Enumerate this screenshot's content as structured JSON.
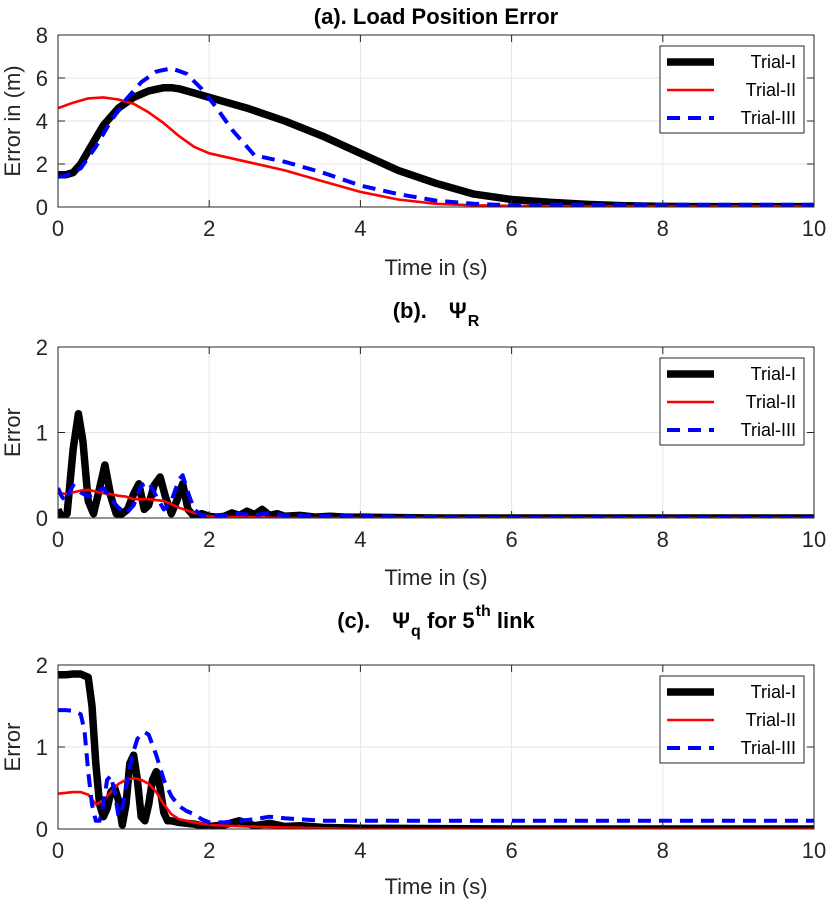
{
  "chart_data": [
    {
      "type": "line",
      "title": "(a). Load Position Error",
      "title_parts": [],
      "xlabel": "Time in (s)",
      "ylabel": "Error in (m)",
      "xlim": [
        0,
        10
      ],
      "ylim": [
        0,
        8
      ],
      "xticks": [
        0,
        2,
        4,
        6,
        8,
        10
      ],
      "yticks": [
        0,
        2,
        4,
        6,
        8
      ],
      "grid": true,
      "legend_position": "top-right",
      "series": [
        {
          "name": "Trial-I",
          "color": "#000000",
          "style": "solid-thick",
          "x": [
            0,
            0.1,
            0.2,
            0.3,
            0.4,
            0.5,
            0.6,
            0.7,
            0.8,
            1.0,
            1.2,
            1.4,
            1.5,
            1.6,
            1.8,
            2.0,
            2.5,
            3.0,
            3.5,
            4.0,
            4.5,
            5.0,
            5.5,
            6.0,
            6.5,
            7.0,
            7.5,
            8.0,
            8.5,
            9.0,
            9.5,
            10.0
          ],
          "y": [
            1.5,
            1.5,
            1.6,
            2.0,
            2.6,
            3.2,
            3.8,
            4.2,
            4.6,
            5.1,
            5.4,
            5.55,
            5.55,
            5.5,
            5.3,
            5.1,
            4.6,
            4.0,
            3.3,
            2.5,
            1.7,
            1.1,
            0.6,
            0.35,
            0.22,
            0.12,
            0.06,
            0.03,
            0.02,
            0.02,
            0.02,
            0.02
          ]
        },
        {
          "name": "Trial-II",
          "color": "#ff0000",
          "style": "solid",
          "x": [
            0,
            0.2,
            0.4,
            0.6,
            0.8,
            1.0,
            1.2,
            1.4,
            1.6,
            1.8,
            2.0,
            2.5,
            3.0,
            3.5,
            4.0,
            4.5,
            5.0,
            5.5,
            6.0,
            7.0,
            8.0,
            9.0,
            10.0
          ],
          "y": [
            4.6,
            4.85,
            5.05,
            5.1,
            5.0,
            4.8,
            4.4,
            3.9,
            3.3,
            2.8,
            2.5,
            2.1,
            1.7,
            1.2,
            0.7,
            0.35,
            0.15,
            0.08,
            0.05,
            0.02,
            0.02,
            0.02,
            0.02
          ]
        },
        {
          "name": "Trial-III",
          "color": "#0000ff",
          "style": "dashed",
          "x": [
            0,
            0.1,
            0.3,
            0.5,
            0.7,
            0.9,
            1.1,
            1.3,
            1.5,
            1.7,
            1.9,
            2.1,
            2.3,
            2.6,
            3.0,
            3.5,
            4.0,
            4.5,
            5.0,
            5.5,
            6.0,
            6.5,
            7.0,
            8.0,
            9.0,
            10.0
          ],
          "y": [
            1.4,
            1.45,
            1.8,
            2.8,
            4.0,
            5.0,
            5.8,
            6.3,
            6.45,
            6.2,
            5.5,
            4.6,
            3.6,
            2.4,
            2.1,
            1.6,
            1.0,
            0.6,
            0.3,
            0.15,
            0.08,
            0.1,
            0.1,
            0.1,
            0.1,
            0.1
          ]
        }
      ]
    },
    {
      "type": "line",
      "title": "(b).",
      "title_parts": [
        {
          "text": "(b).",
          "kind": "normal"
        },
        {
          "text": "Ψ",
          "kind": "normal"
        },
        {
          "text": "R",
          "kind": "sub"
        }
      ],
      "xlabel": "Time in (s)",
      "ylabel": "Error",
      "xlim": [
        0,
        10
      ],
      "ylim": [
        0,
        2
      ],
      "xticks": [
        0,
        2,
        4,
        6,
        8,
        10
      ],
      "yticks": [
        0,
        1,
        2
      ],
      "grid": true,
      "legend_position": "top-right",
      "series": [
        {
          "name": "Trial-I",
          "color": "#000000",
          "style": "solid-thick",
          "x": [
            0,
            0.05,
            0.12,
            0.2,
            0.27,
            0.33,
            0.4,
            0.47,
            0.55,
            0.62,
            0.7,
            0.77,
            0.85,
            0.92,
            1.0,
            1.07,
            1.14,
            1.2,
            1.27,
            1.35,
            1.42,
            1.5,
            1.57,
            1.65,
            1.72,
            1.8,
            1.9,
            2.0,
            2.1,
            2.2,
            2.3,
            2.4,
            2.5,
            2.6,
            2.7,
            2.8,
            2.9,
            3.0,
            3.2,
            3.4,
            3.6,
            3.8,
            4.0,
            5.0,
            6.0,
            8.0,
            10.0
          ],
          "y": [
            0.1,
            0.0,
            0.05,
            0.8,
            1.22,
            0.9,
            0.2,
            0.05,
            0.35,
            0.62,
            0.25,
            0.05,
            0.05,
            0.1,
            0.28,
            0.4,
            0.1,
            0.15,
            0.38,
            0.48,
            0.25,
            0.05,
            0.2,
            0.4,
            0.1,
            0.02,
            0.05,
            0.02,
            0.01,
            0.02,
            0.06,
            0.03,
            0.08,
            0.04,
            0.1,
            0.03,
            0.05,
            0.02,
            0.03,
            0.01,
            0.02,
            0.01,
            0.01,
            0.0,
            0.0,
            0.0,
            0.0
          ]
        },
        {
          "name": "Trial-II",
          "color": "#ff0000",
          "style": "solid",
          "x": [
            0,
            0.1,
            0.2,
            0.3,
            0.4,
            0.5,
            0.6,
            0.7,
            0.8,
            0.9,
            1.0,
            1.2,
            1.4,
            1.6,
            1.8,
            2.0,
            2.2,
            2.5,
            3.0,
            4.0,
            6.0,
            8.0,
            10.0
          ],
          "y": [
            0.3,
            0.28,
            0.3,
            0.32,
            0.33,
            0.31,
            0.29,
            0.28,
            0.26,
            0.25,
            0.22,
            0.22,
            0.2,
            0.12,
            0.06,
            0.02,
            0.01,
            0.01,
            0.0,
            0.0,
            0.0,
            0.0,
            0.0
          ]
        },
        {
          "name": "Trial-III",
          "color": "#0000ff",
          "style": "dashed",
          "x": [
            0,
            0.05,
            0.1,
            0.15,
            0.2,
            0.3,
            0.4,
            0.5,
            0.6,
            0.7,
            0.8,
            0.9,
            1.0,
            1.1,
            1.2,
            1.3,
            1.4,
            1.5,
            1.6,
            1.65,
            1.72,
            1.8,
            1.9,
            2.0,
            2.2,
            2.4,
            2.6,
            2.8,
            3.0,
            3.2,
            3.5,
            4.0,
            6.0,
            10.0
          ],
          "y": [
            0.35,
            0.25,
            0.2,
            0.3,
            0.38,
            0.3,
            0.25,
            0.3,
            0.35,
            0.22,
            0.12,
            0.05,
            0.15,
            0.38,
            0.42,
            0.25,
            0.1,
            0.2,
            0.45,
            0.5,
            0.3,
            0.1,
            0.03,
            0.03,
            0.03,
            0.05,
            0.03,
            0.06,
            0.03,
            0.03,
            0.02,
            0.02,
            0.0,
            0.0
          ]
        }
      ]
    },
    {
      "type": "line",
      "title": "(c).",
      "title_parts": [
        {
          "text": "(c).",
          "kind": "normal"
        },
        {
          "text": "Ψ",
          "kind": "normal"
        },
        {
          "text": "q",
          "kind": "sub"
        },
        {
          "text": " for 5",
          "kind": "normal"
        },
        {
          "text": "th",
          "kind": "sup"
        },
        {
          "text": " link",
          "kind": "normal"
        }
      ],
      "xlabel": "Time in (s)",
      "ylabel": "Error",
      "xlim": [
        0,
        10
      ],
      "ylim": [
        0,
        2
      ],
      "xticks": [
        0,
        2,
        4,
        6,
        8,
        10
      ],
      "yticks": [
        0,
        1,
        2
      ],
      "grid": true,
      "legend_position": "top-right",
      "series": [
        {
          "name": "Trial-I",
          "color": "#000000",
          "style": "solid-thick",
          "x": [
            0,
            0.1,
            0.2,
            0.3,
            0.4,
            0.45,
            0.5,
            0.55,
            0.6,
            0.65,
            0.7,
            0.75,
            0.8,
            0.85,
            0.9,
            0.95,
            1.0,
            1.05,
            1.1,
            1.15,
            1.2,
            1.25,
            1.3,
            1.35,
            1.4,
            1.45,
            1.5,
            1.6,
            1.7,
            1.8,
            1.9,
            2.0,
            2.2,
            2.4,
            2.6,
            2.8,
            3.0,
            3.2,
            3.5,
            4.0,
            6.0,
            10.0
          ],
          "y": [
            1.88,
            1.88,
            1.89,
            1.89,
            1.85,
            1.5,
            0.8,
            0.3,
            0.15,
            0.25,
            0.45,
            0.5,
            0.35,
            0.05,
            0.3,
            0.8,
            0.9,
            0.6,
            0.15,
            0.1,
            0.3,
            0.6,
            0.7,
            0.5,
            0.2,
            0.1,
            0.1,
            0.08,
            0.07,
            0.06,
            0.04,
            0.03,
            0.05,
            0.1,
            0.04,
            0.07,
            0.03,
            0.04,
            0.02,
            0.01,
            0.0,
            0.0
          ]
        },
        {
          "name": "Trial-II",
          "color": "#ff0000",
          "style": "solid",
          "x": [
            0,
            0.2,
            0.3,
            0.4,
            0.5,
            0.6,
            0.7,
            0.8,
            0.9,
            1.0,
            1.1,
            1.2,
            1.3,
            1.4,
            1.5,
            1.6,
            1.8,
            2.0,
            2.5,
            3.0,
            4.0,
            6.0,
            10.0
          ],
          "y": [
            0.43,
            0.45,
            0.45,
            0.42,
            0.3,
            0.35,
            0.45,
            0.55,
            0.6,
            0.62,
            0.6,
            0.55,
            0.45,
            0.3,
            0.18,
            0.12,
            0.08,
            0.05,
            0.03,
            0.02,
            0.0,
            0.0,
            0.0
          ]
        },
        {
          "name": "Trial-III",
          "color": "#0000ff",
          "style": "dashed",
          "x": [
            0,
            0.1,
            0.2,
            0.3,
            0.35,
            0.4,
            0.45,
            0.5,
            0.55,
            0.6,
            0.65,
            0.7,
            0.75,
            0.8,
            0.85,
            0.9,
            0.95,
            1.0,
            1.05,
            1.1,
            1.15,
            1.2,
            1.3,
            1.4,
            1.5,
            1.6,
            1.7,
            1.8,
            1.9,
            2.0,
            2.2,
            2.4,
            2.6,
            2.8,
            3.0,
            3.2,
            3.5,
            4.0,
            6.0,
            10.0
          ],
          "y": [
            1.45,
            1.45,
            1.44,
            1.4,
            1.2,
            0.7,
            0.3,
            0.1,
            0.1,
            0.3,
            0.6,
            0.65,
            0.45,
            0.15,
            0.25,
            0.5,
            0.75,
            0.95,
            1.1,
            1.15,
            1.18,
            1.15,
            0.9,
            0.6,
            0.4,
            0.28,
            0.22,
            0.18,
            0.12,
            0.08,
            0.08,
            0.1,
            0.12,
            0.15,
            0.13,
            0.12,
            0.1,
            0.1,
            0.1,
            0.1
          ]
        }
      ]
    }
  ]
}
